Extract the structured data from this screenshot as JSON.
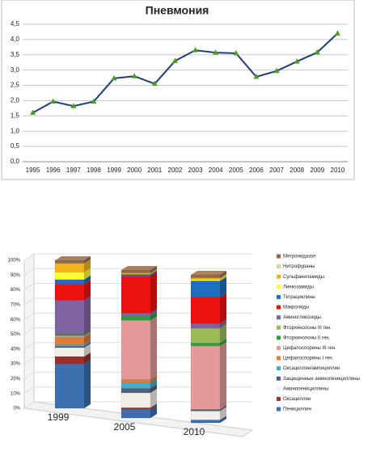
{
  "chart_data": [
    {
      "type": "line",
      "title": "Пневмония",
      "categories": [
        "1995",
        "1996",
        "1997",
        "1998",
        "1999",
        "2000",
        "2001",
        "2002",
        "2003",
        "2004",
        "2005",
        "2006",
        "2007",
        "2008",
        "2009",
        "2010"
      ],
      "values": [
        1.6,
        1.97,
        1.82,
        1.97,
        2.73,
        2.8,
        2.55,
        3.3,
        3.65,
        3.57,
        3.55,
        2.78,
        2.97,
        3.28,
        3.58,
        4.2
      ],
      "color": "#1f3f6f",
      "marker_color": "#4e9a2a",
      "ylim": [
        0,
        4.5
      ],
      "yticks": [
        {
          "value": 0,
          "label": "0,0"
        },
        {
          "value": 0.5,
          "label": "0,5"
        },
        {
          "value": 1,
          "label": "1,0"
        },
        {
          "value": 1.5,
          "label": "1,5"
        },
        {
          "value": 2,
          "label": "2,0"
        },
        {
          "value": 2.5,
          "label": "2,5"
        },
        {
          "value": 3,
          "label": "3,0"
        },
        {
          "value": 3.5,
          "label": "3,5"
        },
        {
          "value": 4,
          "label": "4,0"
        },
        {
          "value": 4.5,
          "label": "4,5"
        }
      ],
      "grid": true
    },
    {
      "type": "stacked_bar_3d",
      "categories": [
        "1999",
        "2005",
        "2010"
      ],
      "ylim": [
        0,
        100
      ],
      "yticks": [
        {
          "value": 0,
          "label": "0%"
        },
        {
          "value": 10,
          "label": "10%"
        },
        {
          "value": 20,
          "label": "20%"
        },
        {
          "value": 30,
          "label": "30%"
        },
        {
          "value": 40,
          "label": "40%"
        },
        {
          "value": 50,
          "label": "50%"
        },
        {
          "value": 60,
          "label": "60%"
        },
        {
          "value": 70,
          "label": "70%"
        },
        {
          "value": 80,
          "label": "80%"
        },
        {
          "value": 90,
          "label": "90%"
        },
        {
          "value": 100,
          "label": "100%"
        }
      ],
      "grid": true,
      "series": [
        {
          "name": "Пенициллин",
          "color": "#3c6eb0",
          "values": [
            30,
            6,
            2
          ]
        },
        {
          "name": "Оксациллин",
          "color": "#9b3030",
          "values": [
            5,
            1,
            0
          ]
        },
        {
          "name": "Аминопенициллины",
          "color": "#f2efe8",
          "values": [
            6,
            10,
            6
          ]
        },
        {
          "name": "Защищенные аминопенициллины",
          "color": "#4f5f80",
          "values": [
            1,
            3,
            1
          ]
        },
        {
          "name": "Оксациллин/ампициллин",
          "color": "#4bacc6",
          "values": [
            1,
            4,
            0
          ]
        },
        {
          "name": "Цефалоспорины I ген.",
          "color": "#e07b3a",
          "values": [
            5,
            2,
            0
          ]
        },
        {
          "name": "Цефалоспорины III ген.",
          "color": "#e49a9a",
          "values": [
            1,
            40,
            43
          ]
        },
        {
          "name": "Фторхинолоны II ген.",
          "color": "#2e9e3e",
          "values": [
            1,
            3,
            2
          ]
        },
        {
          "name": "Фторхинолоны III ген.",
          "color": "#9bbb59",
          "values": [
            0,
            0,
            10
          ]
        },
        {
          "name": "Аминогликозиды",
          "color": "#8064a2",
          "values": [
            23,
            2,
            3
          ]
        },
        {
          "name": "Макролиды",
          "color": "#ee1111",
          "values": [
            11,
            25,
            18
          ]
        },
        {
          "name": "Тетрациклины",
          "color": "#1f6fc0",
          "values": [
            3,
            1,
            11
          ]
        },
        {
          "name": "Линкозамиды",
          "color": "#ffff33",
          "values": [
            5,
            0,
            1
          ]
        },
        {
          "name": "Сульфаниламиды",
          "color": "#f5b21a",
          "values": [
            6,
            1,
            1
          ]
        },
        {
          "name": "Нитрофураны",
          "color": "#c9d7a0",
          "values": [
            0,
            0,
            0
          ]
        },
        {
          "name": "Метронидазол",
          "color": "#8e6b4f",
          "values": [
            2,
            2,
            2
          ]
        }
      ]
    }
  ]
}
